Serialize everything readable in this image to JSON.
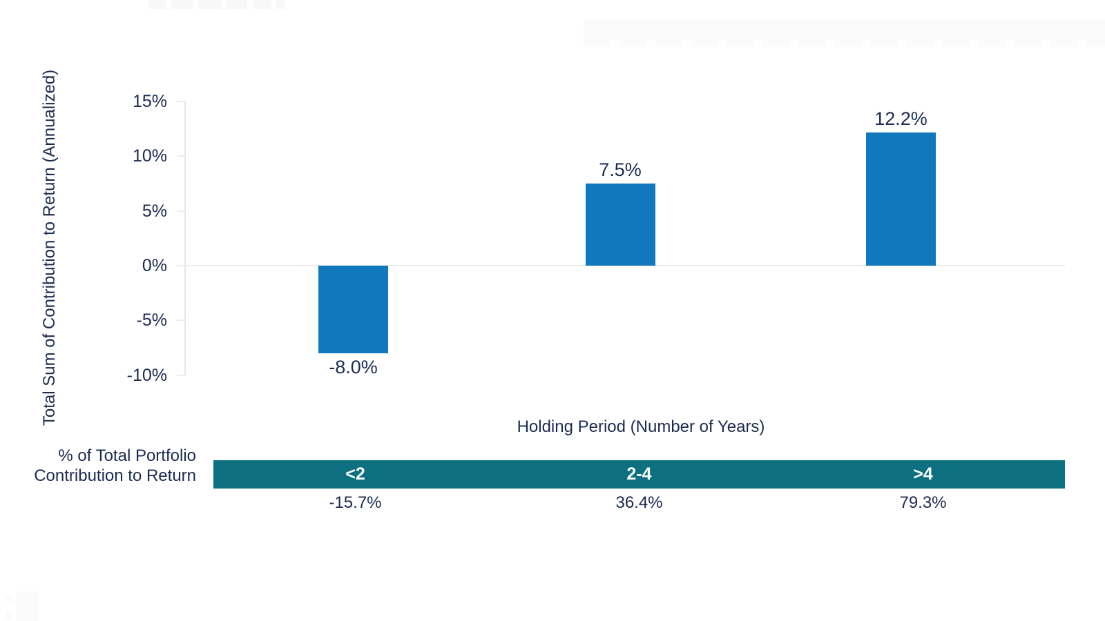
{
  "chart_data": {
    "type": "bar",
    "title": "",
    "categories": [
      "<2",
      "2-4",
      ">4"
    ],
    "values": [
      -8.0,
      7.5,
      12.2
    ],
    "bar_labels": [
      "-8.0%",
      "7.5%",
      "12.2%"
    ],
    "xlabel": "Holding Period (Number of Years)",
    "ylabel": "Total Sum of Contribution to Return (Annualized)",
    "ylim": [
      -10,
      15
    ],
    "ytick_values": [
      15,
      10,
      5,
      0,
      -5,
      -10
    ],
    "ytick_labels": [
      "15%",
      "10%",
      "5%",
      "0%",
      "-5%",
      "-10%"
    ],
    "legend": "none",
    "grid": "zero-baseline-only",
    "bar_color": "#1178BE",
    "text_color": "#1B2B50",
    "axis_color": "#E6E6E6",
    "contribution_row": {
      "label_line1": "% of Total Portfolio",
      "label_line2": "Contribution to Return",
      "band_color": "#0C7080",
      "band_text_color": "#FFFFFF",
      "categories": [
        "<2",
        "2-4",
        ">4"
      ],
      "values": [
        "-15.7%",
        "36.4%",
        "79.3%"
      ]
    }
  }
}
